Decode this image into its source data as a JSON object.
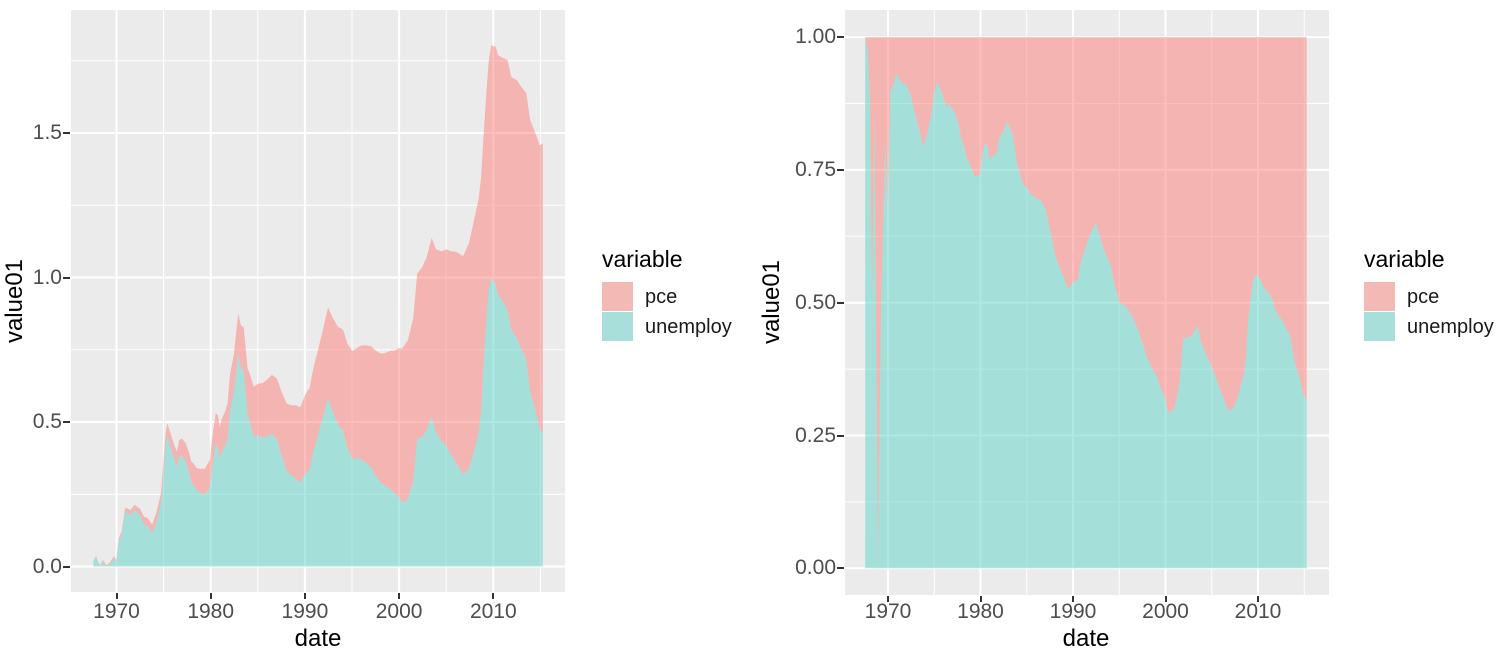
{
  "figure": {
    "background": "#FFFFFF",
    "panel_background": "#EBEBEB",
    "gridline_color": "#FFFFFF",
    "axis_tick_color": "#333333",
    "tick_label_color": "#4D4D4D",
    "axis_title_color": "#000000"
  },
  "chart_data": {
    "type": "area",
    "description": "Two stacked area charts of the same two series; left is absolute stacking, right is proportional (fill) stacking.",
    "legend": {
      "title": "variable",
      "entries": [
        {
          "label": "pce",
          "swatch_color": "#F3B9B5",
          "area_fill": "rgba(253,125,119,0.5)"
        },
        {
          "label": "unemploy",
          "swatch_color": "#A8DFDB",
          "area_fill": "rgba(95,211,199,0.5)"
        }
      ]
    },
    "stack_order_bottom_to_top": [
      "unemploy",
      "pce"
    ],
    "charts": [
      {
        "id": "left",
        "position": "stack",
        "xlabel": "date",
        "ylabel": "value01",
        "x_ticks": [
          1970,
          1980,
          1990,
          2000,
          2010
        ],
        "x_tick_labels": [
          "1970",
          "1980",
          "1990",
          "2000",
          "2010"
        ],
        "x_minor_ticks": [
          1975,
          1985,
          1995,
          2005,
          2015
        ],
        "y_ticks": [
          0,
          0.5,
          1,
          1.5
        ],
        "y_tick_labels": [
          "0.0",
          "0.5",
          "1.0",
          "1.5"
        ],
        "y_minor_ticks": [
          0.25,
          0.75,
          1.25,
          1.75
        ],
        "xlim": [
          1965.2,
          2017.6
        ],
        "ylim": [
          -0.09,
          1.93
        ],
        "grid": true,
        "legend_position": "right"
      },
      {
        "id": "right",
        "position": "fill",
        "xlabel": "date",
        "ylabel": "value01",
        "x_ticks": [
          1970,
          1980,
          1990,
          2000,
          2010
        ],
        "x_tick_labels": [
          "1970",
          "1980",
          "1990",
          "2000",
          "2010"
        ],
        "x_minor_ticks": [
          1975,
          1985,
          1995,
          2005,
          2015
        ],
        "y_ticks": [
          0,
          0.25,
          0.5,
          0.75,
          1
        ],
        "y_tick_labels": [
          "0.00",
          "0.25",
          "0.50",
          "0.75",
          "1.00"
        ],
        "y_minor_ticks": [
          0.125,
          0.375,
          0.625,
          0.875
        ],
        "xlim": [
          1965.1,
          2017.7
        ],
        "ylim": [
          -0.05,
          1.05
        ],
        "grid": true,
        "legend_position": "right"
      }
    ],
    "series_columns": [
      "year",
      "unemploy01",
      "pce01"
    ],
    "points": [
      [
        1967.54,
        0.02,
        0.0
      ],
      [
        1967.83,
        0.036,
        0.001
      ],
      [
        1968.04,
        0.015,
        0.002
      ],
      [
        1968.29,
        0.002,
        0.002
      ],
      [
        1968.54,
        0.02,
        0.003
      ],
      [
        1968.92,
        0.0,
        0.005
      ],
      [
        1969.25,
        0.006,
        0.006
      ],
      [
        1969.71,
        0.028,
        0.007
      ],
      [
        1969.96,
        0.016,
        0.008
      ],
      [
        1970.25,
        0.088,
        0.01
      ],
      [
        1970.54,
        0.109,
        0.011
      ],
      [
        1970.92,
        0.189,
        0.014
      ],
      [
        1971.5,
        0.179,
        0.017
      ],
      [
        1971.92,
        0.195,
        0.019
      ],
      [
        1972.5,
        0.177,
        0.022
      ],
      [
        1972.92,
        0.147,
        0.025
      ],
      [
        1973.29,
        0.14,
        0.028
      ],
      [
        1973.79,
        0.115,
        0.03
      ],
      [
        1974.25,
        0.154,
        0.034
      ],
      [
        1974.71,
        0.217,
        0.036
      ],
      [
        1974.96,
        0.312,
        0.038
      ],
      [
        1975.21,
        0.418,
        0.041
      ],
      [
        1975.38,
        0.454,
        0.042
      ],
      [
        1975.75,
        0.412,
        0.047
      ],
      [
        1976.17,
        0.366,
        0.051
      ],
      [
        1976.42,
        0.345,
        0.053
      ],
      [
        1976.63,
        0.382,
        0.055
      ],
      [
        1976.92,
        0.384,
        0.059
      ],
      [
        1977.33,
        0.365,
        0.063
      ],
      [
        1977.63,
        0.335,
        0.066
      ],
      [
        1977.96,
        0.292,
        0.07
      ],
      [
        1978.13,
        0.287,
        0.072
      ],
      [
        1978.5,
        0.264,
        0.077
      ],
      [
        1978.79,
        0.258,
        0.08
      ],
      [
        1979.38,
        0.249,
        0.089
      ],
      [
        1979.92,
        0.274,
        0.096
      ],
      [
        1980.25,
        0.369,
        0.102
      ],
      [
        1980.54,
        0.425,
        0.105
      ],
      [
        1980.79,
        0.414,
        0.108
      ],
      [
        1980.96,
        0.371,
        0.111
      ],
      [
        1981.13,
        0.393,
        0.114
      ],
      [
        1981.5,
        0.415,
        0.119
      ],
      [
        1981.79,
        0.442,
        0.122
      ],
      [
        1982.04,
        0.537,
        0.125
      ],
      [
        1982.46,
        0.604,
        0.13
      ],
      [
        1982.92,
        0.739,
        0.138
      ],
      [
        1983.21,
        0.689,
        0.145
      ],
      [
        1983.5,
        0.676,
        0.152
      ],
      [
        1983.92,
        0.525,
        0.162
      ],
      [
        1984.25,
        0.489,
        0.167
      ],
      [
        1984.58,
        0.45,
        0.172
      ],
      [
        1985.04,
        0.453,
        0.18
      ],
      [
        1985.5,
        0.446,
        0.188
      ],
      [
        1986.04,
        0.451,
        0.197
      ],
      [
        1986.5,
        0.46,
        0.203
      ],
      [
        1987.04,
        0.44,
        0.21
      ],
      [
        1987.5,
        0.388,
        0.219
      ],
      [
        1988.04,
        0.334,
        0.231
      ],
      [
        1988.5,
        0.317,
        0.241
      ],
      [
        1989.04,
        0.305,
        0.253
      ],
      [
        1989.5,
        0.289,
        0.262
      ],
      [
        1990.04,
        0.321,
        0.274
      ],
      [
        1990.5,
        0.335,
        0.283
      ],
      [
        1990.92,
        0.401,
        0.289
      ],
      [
        1991.5,
        0.467,
        0.296
      ],
      [
        1991.92,
        0.518,
        0.302
      ],
      [
        1992.46,
        0.584,
        0.313
      ],
      [
        1992.92,
        0.538,
        0.324
      ],
      [
        1993.5,
        0.491,
        0.338
      ],
      [
        1994.04,
        0.469,
        0.351
      ],
      [
        1994.5,
        0.412,
        0.36
      ],
      [
        1995.04,
        0.372,
        0.373
      ],
      [
        1995.5,
        0.375,
        0.381
      ],
      [
        1996.04,
        0.371,
        0.394
      ],
      [
        1996.5,
        0.36,
        0.405
      ],
      [
        1997.04,
        0.342,
        0.42
      ],
      [
        1997.5,
        0.317,
        0.43
      ],
      [
        1998.04,
        0.291,
        0.446
      ],
      [
        1998.5,
        0.279,
        0.459
      ],
      [
        1999.04,
        0.27,
        0.476
      ],
      [
        1999.5,
        0.254,
        0.493
      ],
      [
        2000.04,
        0.238,
        0.519
      ],
      [
        2000.29,
        0.221,
        0.532
      ],
      [
        2000.92,
        0.233,
        0.549
      ],
      [
        2001.5,
        0.297,
        0.562
      ],
      [
        2001.92,
        0.44,
        0.573
      ],
      [
        2002.5,
        0.451,
        0.587
      ],
      [
        2002.92,
        0.47,
        0.6
      ],
      [
        2003.46,
        0.52,
        0.617
      ],
      [
        2003.92,
        0.463,
        0.635
      ],
      [
        2004.5,
        0.435,
        0.656
      ],
      [
        2005.04,
        0.416,
        0.682
      ],
      [
        2005.5,
        0.388,
        0.703
      ],
      [
        2006.04,
        0.36,
        0.729
      ],
      [
        2006.79,
        0.319,
        0.755
      ],
      [
        2007.42,
        0.339,
        0.78
      ],
      [
        2007.92,
        0.393,
        0.8
      ],
      [
        2008.46,
        0.466,
        0.81
      ],
      [
        2008.71,
        0.538,
        0.808
      ],
      [
        2008.92,
        0.679,
        0.786
      ],
      [
        2009.21,
        0.827,
        0.787
      ],
      [
        2009.5,
        0.949,
        0.796
      ],
      [
        2009.79,
        1.0,
        0.804
      ],
      [
        2009.96,
        0.989,
        0.812
      ],
      [
        2010.25,
        0.98,
        0.819
      ],
      [
        2010.5,
        0.941,
        0.828
      ],
      [
        2010.92,
        0.921,
        0.84
      ],
      [
        2011.5,
        0.891,
        0.862
      ],
      [
        2011.92,
        0.818,
        0.875
      ],
      [
        2012.5,
        0.791,
        0.892
      ],
      [
        2012.92,
        0.757,
        0.905
      ],
      [
        2013.5,
        0.716,
        0.922
      ],
      [
        2013.92,
        0.605,
        0.939
      ],
      [
        2014.5,
        0.536,
        0.961
      ],
      [
        2014.92,
        0.476,
        0.982
      ],
      [
        2015.25,
        0.463,
        1.0
      ]
    ]
  }
}
